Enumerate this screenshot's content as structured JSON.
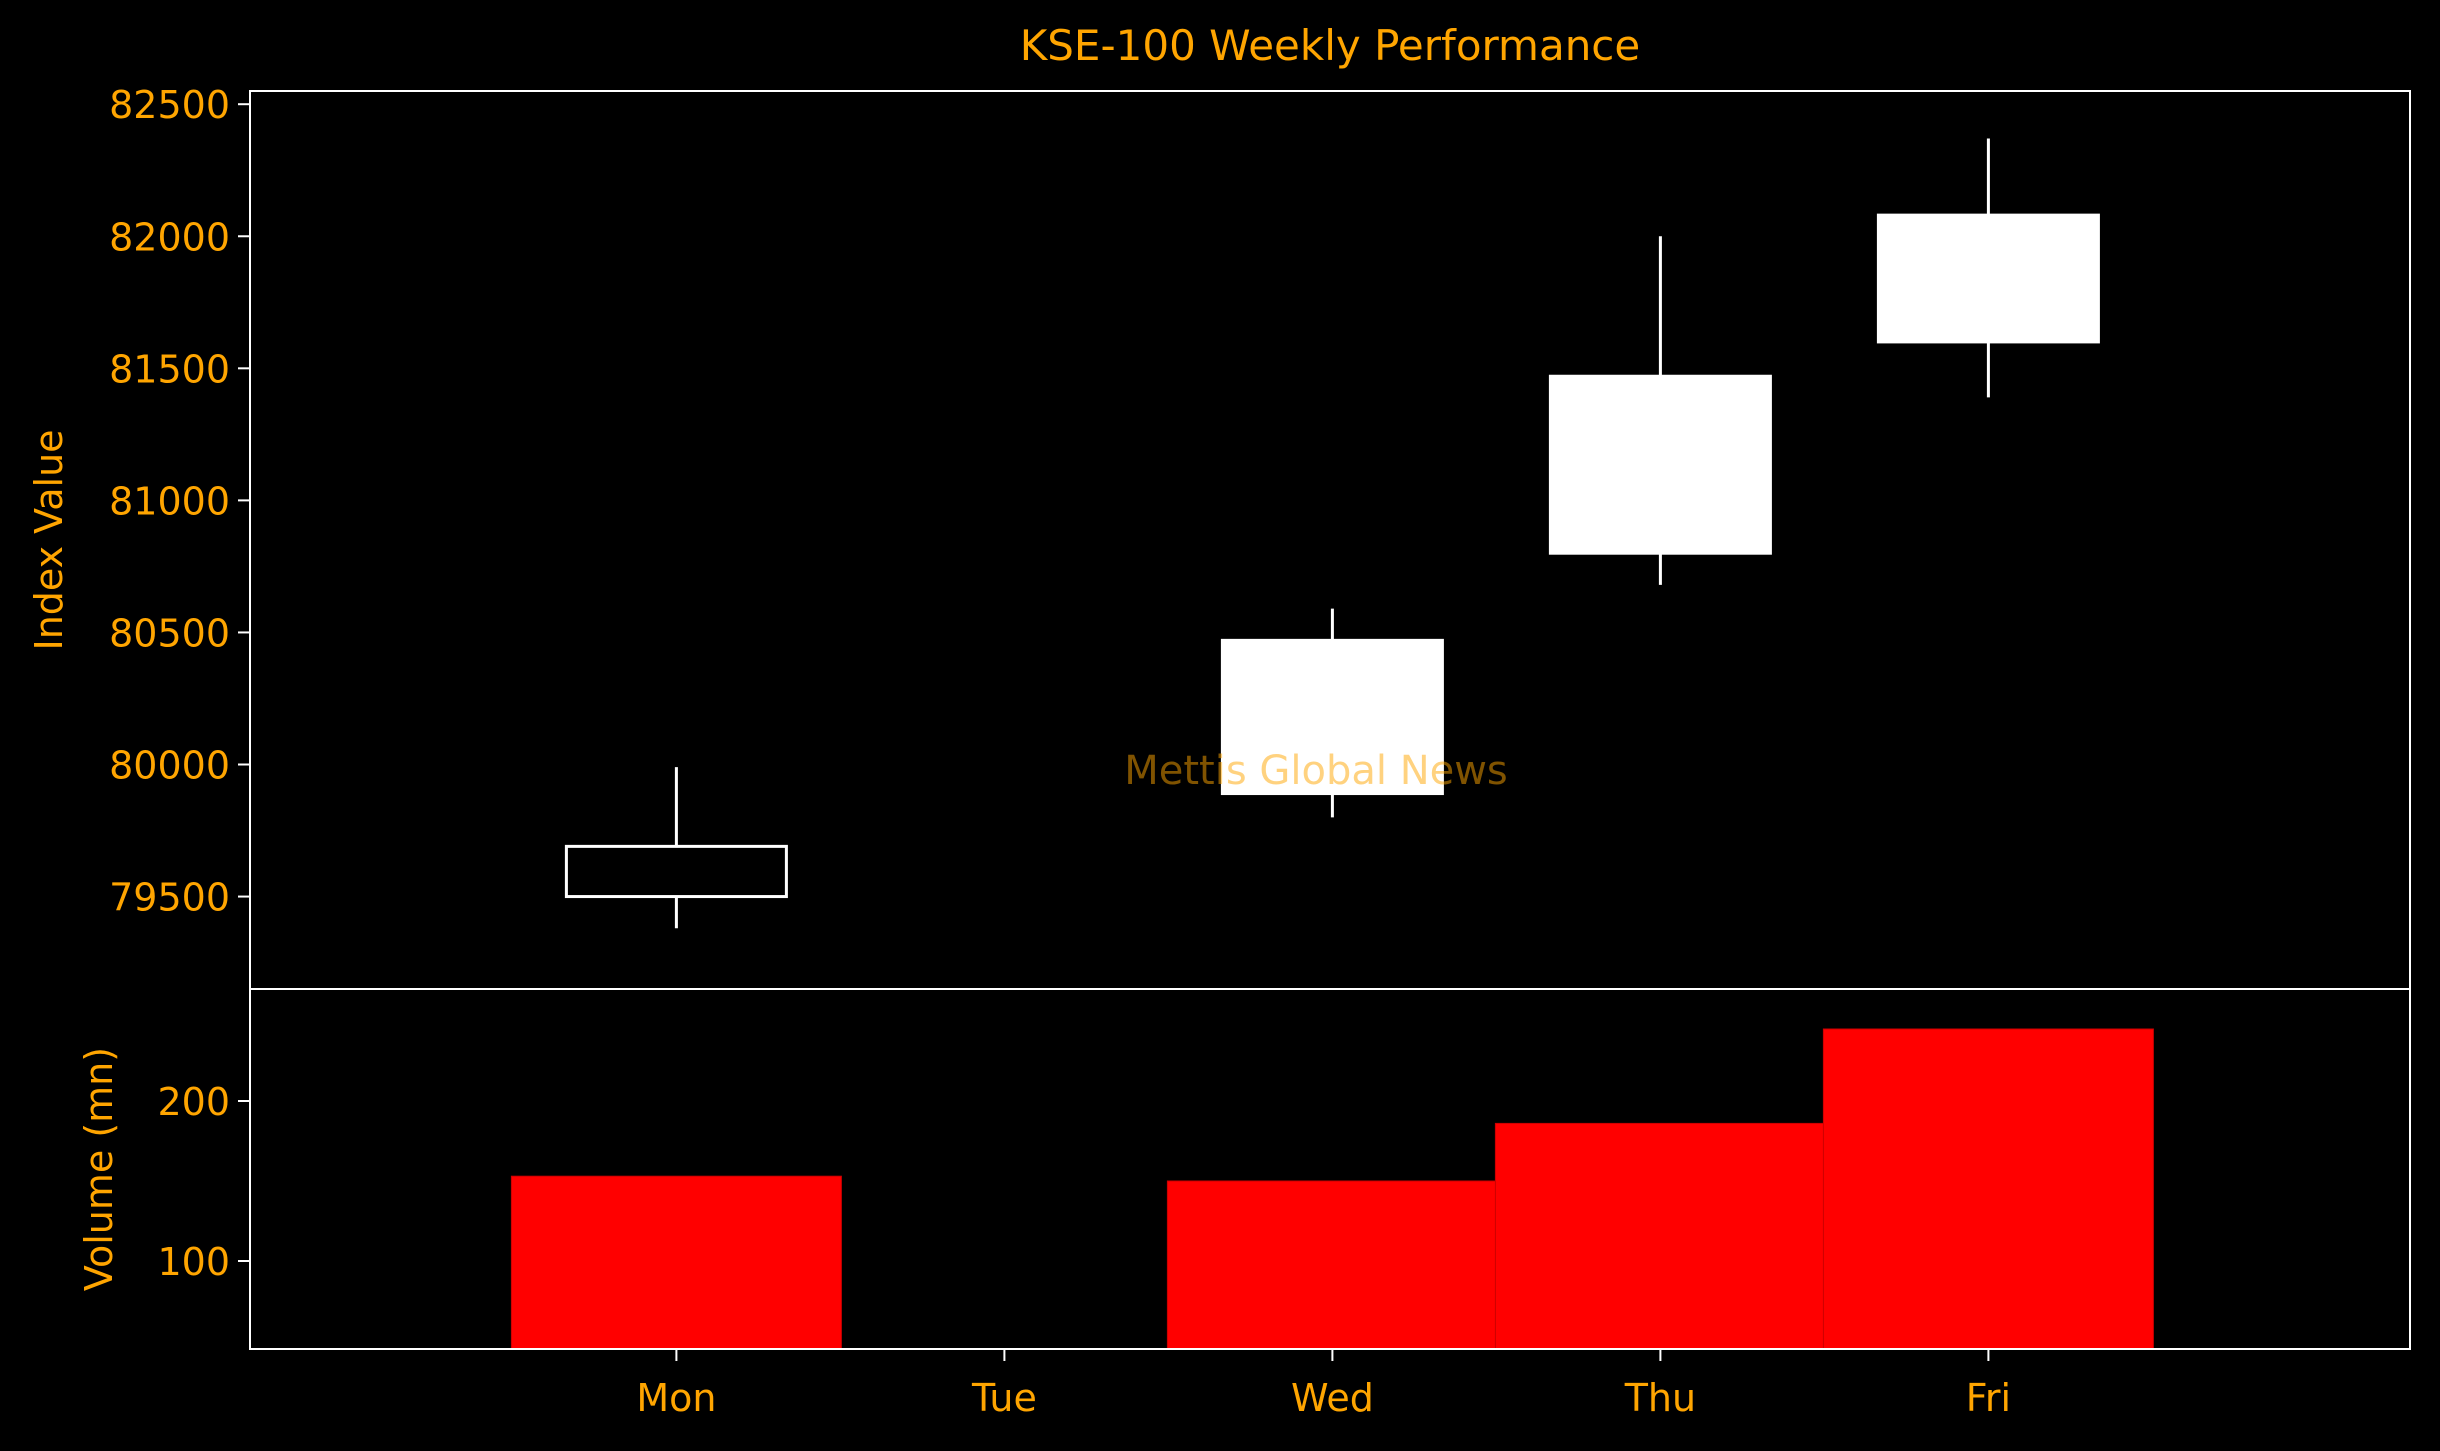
{
  "chart_data": [
    {
      "type": "candlestick",
      "title": "KSE-100 Weekly Performance",
      "ylabel": "Index Value",
      "xlabel": "",
      "categories": [
        "Mon",
        "Tue",
        "Wed",
        "Thu",
        "Fri"
      ],
      "ohlc": [
        {
          "day": "Mon",
          "open": 79690,
          "high": 79990,
          "low": 79380,
          "close": 79500
        },
        {
          "day": "Tue",
          "open": null,
          "high": null,
          "low": null,
          "close": null
        },
        {
          "day": "Wed",
          "open": 79890,
          "high": 80590,
          "low": 79800,
          "close": 80470
        },
        {
          "day": "Thu",
          "open": 80800,
          "high": 82000,
          "low": 80680,
          "close": 81470
        },
        {
          "day": "Fri",
          "open": 81600,
          "high": 82370,
          "low": 81390,
          "close": 82080
        }
      ],
      "yticks": [
        79500,
        80000,
        80500,
        81000,
        81500,
        82000,
        82500
      ],
      "ylim": [
        79150,
        82550
      ],
      "watermark": "Mettis Global News",
      "colors": {
        "up": "#ffffff",
        "down": "#000000",
        "edge": "#ffffff",
        "text": "#ffa500",
        "background": "#000000"
      }
    },
    {
      "type": "bar",
      "ylabel": "Volume (mn)",
      "categories": [
        "Mon",
        "Tue",
        "Wed",
        "Thu",
        "Fri"
      ],
      "values": [
        153,
        null,
        150,
        186,
        245
      ],
      "yticks": [
        100,
        200
      ],
      "ylim": [
        45,
        270
      ],
      "grid": false,
      "colors": {
        "bar": "#ff0000"
      }
    }
  ]
}
